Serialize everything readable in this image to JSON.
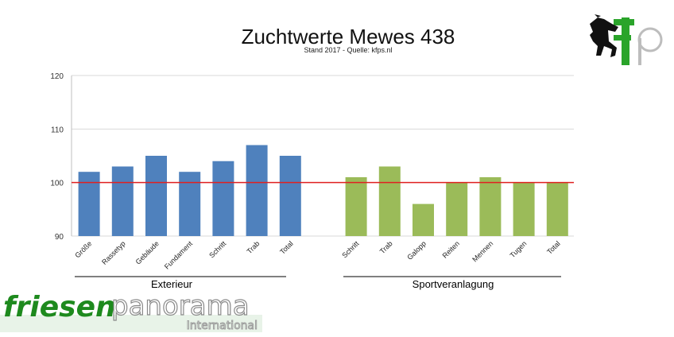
{
  "chart_data": {
    "type": "bar",
    "title": "Zuchtwerte Mewes 438",
    "subtitle": "Stand 2017 - Quelle: kfps.nl",
    "ylim": [
      90,
      120
    ],
    "yticks": [
      90,
      100,
      110,
      120
    ],
    "reference_line": 100,
    "grid": true,
    "groups": [
      {
        "label": "Exterieur",
        "color": "#4f81bd",
        "categories": [
          "Größe",
          "Rassetyp",
          "Gebäude",
          "Fundament",
          "Schritt",
          "Trab",
          "Total"
        ],
        "values": [
          102,
          103,
          105,
          102,
          104,
          107,
          105
        ]
      },
      {
        "label": "Sportveranlagung",
        "color": "#9bbb59",
        "categories": [
          "Schritt",
          "Trab",
          "Galopp",
          "Reiten",
          "Mennen",
          "Tugen",
          "Total"
        ],
        "values": [
          101,
          103,
          96,
          100,
          101,
          100,
          100
        ]
      }
    ]
  },
  "branding": {
    "logo_part1": "friesen",
    "logo_part2": "panorama",
    "logo_sub": "International",
    "corner_logo": "fp",
    "corner_icon": "horse-icon"
  },
  "colors": {
    "reference_line": "#e02020",
    "grid": "#d9d9d9",
    "logo_green": "#1e8a1e",
    "logo_gray": "#9a9a9a"
  }
}
